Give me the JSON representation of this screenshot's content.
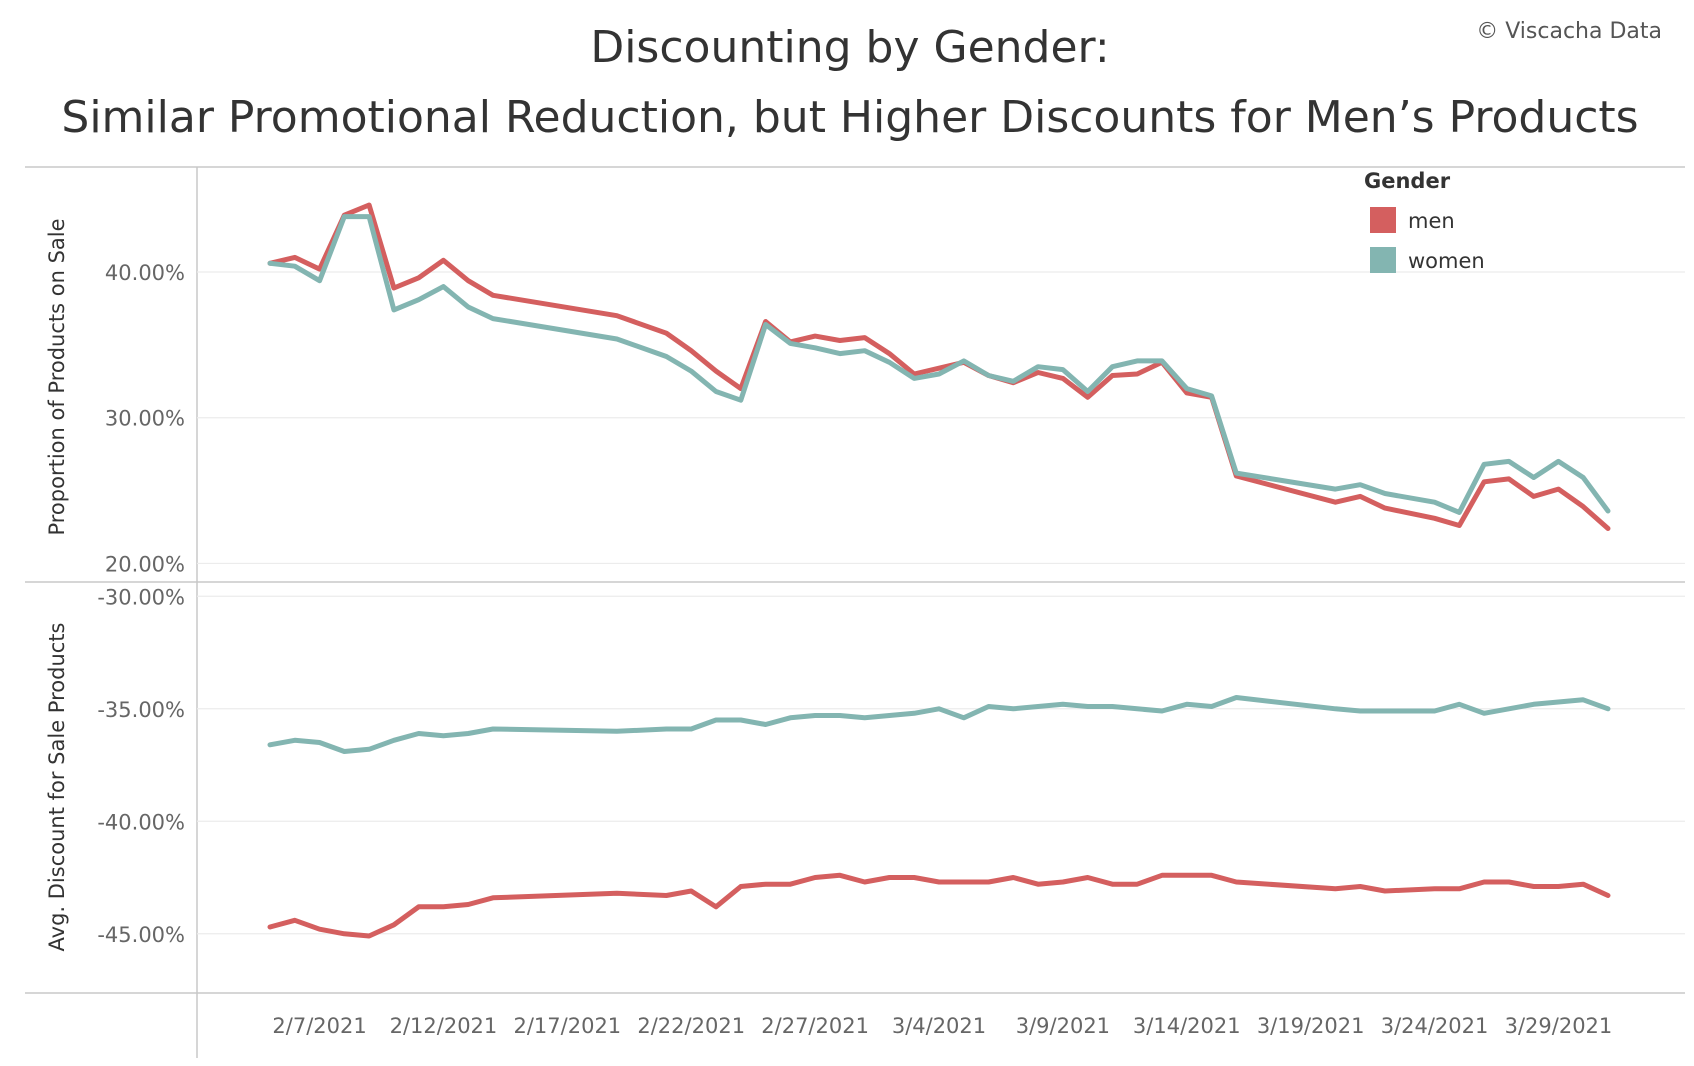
{
  "title_lines": [
    "Discounting by Gender:",
    "Similar Promotional Reduction, but Higher Discounts for Men’s Products"
  ],
  "credit": "© Viscacha Data",
  "colors": {
    "men": "#d45f5f",
    "women": "#83b5b1",
    "grid": "#ececec",
    "axis": "#c8c8c8"
  },
  "legend": {
    "title": "Gender",
    "items": [
      {
        "label": "men",
        "color": "#d45f5f"
      },
      {
        "label": "women",
        "color": "#83b5b1"
      }
    ],
    "position": "top-right"
  },
  "chart_data": [
    {
      "type": "line",
      "panel": "top",
      "ylabel": "Proportion of Products on Sale",
      "ylim": [
        19.0,
        47.0
      ],
      "yticks": [
        20,
        30,
        40
      ],
      "ytick_labels": [
        "20.00%",
        "30.00%",
        "40.00%"
      ],
      "grid": true,
      "xticks": [
        "2/7/2021",
        "2/12/2021",
        "2/17/2021",
        "2/22/2021",
        "2/27/2021",
        "3/4/2021",
        "3/9/2021",
        "3/14/2021",
        "3/19/2021",
        "3/24/2021",
        "3/29/2021"
      ],
      "x": [
        "2/5/2021",
        "2/6/2021",
        "2/7/2021",
        "2/8/2021",
        "2/9/2021",
        "2/10/2021",
        "2/11/2021",
        "2/12/2021",
        "2/13/2021",
        "2/14/2021",
        "2/19/2021",
        "2/21/2021",
        "2/22/2021",
        "2/23/2021",
        "2/24/2021",
        "2/25/2021",
        "2/26/2021",
        "2/27/2021",
        "2/28/2021",
        "3/1/2021",
        "3/2/2021",
        "3/3/2021",
        "3/4/2021",
        "3/5/2021",
        "3/6/2021",
        "3/7/2021",
        "3/8/2021",
        "3/9/2021",
        "3/10/2021",
        "3/11/2021",
        "3/12/2021",
        "3/13/2021",
        "3/14/2021",
        "3/15/2021",
        "3/16/2021",
        "3/20/2021",
        "3/21/2021",
        "3/22/2021",
        "3/24/2021",
        "3/25/2021",
        "3/26/2021",
        "3/27/2021",
        "3/28/2021",
        "3/29/2021",
        "3/30/2021",
        "3/31/2021"
      ],
      "series": [
        {
          "name": "men",
          "values": [
            40.6,
            41.0,
            40.2,
            43.9,
            44.6,
            38.9,
            39.6,
            40.8,
            39.4,
            38.4,
            37.0,
            35.8,
            34.6,
            33.2,
            32.0,
            36.6,
            35.2,
            35.6,
            35.3,
            35.5,
            34.4,
            33.0,
            33.4,
            33.8,
            32.9,
            32.4,
            33.1,
            32.7,
            31.4,
            32.9,
            33.0,
            33.8,
            31.7,
            31.4,
            26.0,
            24.2,
            24.6,
            23.8,
            23.1,
            22.6,
            25.6,
            25.8,
            24.6,
            25.1,
            23.9,
            22.4
          ]
        },
        {
          "name": "women",
          "values": [
            40.6,
            40.4,
            39.4,
            43.8,
            43.8,
            37.4,
            38.1,
            39.0,
            37.6,
            36.8,
            35.4,
            34.2,
            33.2,
            31.8,
            31.2,
            36.4,
            35.1,
            34.8,
            34.4,
            34.6,
            33.8,
            32.7,
            33.0,
            33.9,
            32.9,
            32.5,
            33.5,
            33.3,
            31.8,
            33.5,
            33.9,
            33.9,
            32.0,
            31.5,
            26.2,
            25.1,
            25.4,
            24.8,
            24.2,
            23.5,
            26.8,
            27.0,
            25.9,
            27.0,
            25.9,
            23.6
          ]
        }
      ]
    },
    {
      "type": "line",
      "panel": "bottom",
      "ylabel": "Avg. Discount for Sale Products",
      "ylim": [
        -47.5,
        -29.5
      ],
      "yticks": [
        -45,
        -40,
        -35,
        -30
      ],
      "ytick_labels": [
        "-45.00%",
        "-40.00%",
        "-35.00%",
        "-30.00%"
      ],
      "grid": true,
      "x": [
        "2/5/2021",
        "2/6/2021",
        "2/7/2021",
        "2/8/2021",
        "2/9/2021",
        "2/10/2021",
        "2/11/2021",
        "2/12/2021",
        "2/13/2021",
        "2/14/2021",
        "2/19/2021",
        "2/21/2021",
        "2/22/2021",
        "2/23/2021",
        "2/24/2021",
        "2/25/2021",
        "2/26/2021",
        "2/27/2021",
        "2/28/2021",
        "3/1/2021",
        "3/2/2021",
        "3/3/2021",
        "3/4/2021",
        "3/5/2021",
        "3/6/2021",
        "3/7/2021",
        "3/8/2021",
        "3/9/2021",
        "3/10/2021",
        "3/11/2021",
        "3/12/2021",
        "3/13/2021",
        "3/14/2021",
        "3/15/2021",
        "3/16/2021",
        "3/20/2021",
        "3/21/2021",
        "3/22/2021",
        "3/24/2021",
        "3/25/2021",
        "3/26/2021",
        "3/27/2021",
        "3/28/2021",
        "3/29/2021",
        "3/30/2021",
        "3/31/2021"
      ],
      "series": [
        {
          "name": "men",
          "values": [
            -44.7,
            -44.4,
            -44.8,
            -45.0,
            -45.1,
            -44.6,
            -43.8,
            -43.8,
            -43.7,
            -43.4,
            -43.2,
            -43.3,
            -43.1,
            -43.8,
            -42.9,
            -42.8,
            -42.8,
            -42.5,
            -42.4,
            -42.7,
            -42.5,
            -42.5,
            -42.7,
            -42.7,
            -42.7,
            -42.5,
            -42.8,
            -42.7,
            -42.5,
            -42.8,
            -42.8,
            -42.4,
            -42.4,
            -42.4,
            -42.7,
            -43.0,
            -42.9,
            -43.1,
            -43.0,
            -43.0,
            -42.7,
            -42.7,
            -42.9,
            -42.9,
            -42.8,
            -43.3
          ]
        },
        {
          "name": "women",
          "values": [
            -36.6,
            -36.4,
            -36.5,
            -36.9,
            -36.8,
            -36.4,
            -36.1,
            -36.2,
            -36.1,
            -35.9,
            -36.0,
            -35.9,
            -35.9,
            -35.5,
            -35.5,
            -35.7,
            -35.4,
            -35.3,
            -35.3,
            -35.4,
            -35.3,
            -35.2,
            -35.0,
            -35.4,
            -34.9,
            -35.0,
            -34.9,
            -34.8,
            -34.9,
            -34.9,
            -35.0,
            -35.1,
            -34.8,
            -34.9,
            -34.5,
            -35.0,
            -35.1,
            -35.1,
            -35.1,
            -34.8,
            -35.2,
            -35.0,
            -34.8,
            -34.7,
            -34.6,
            -35.0
          ]
        }
      ]
    }
  ]
}
